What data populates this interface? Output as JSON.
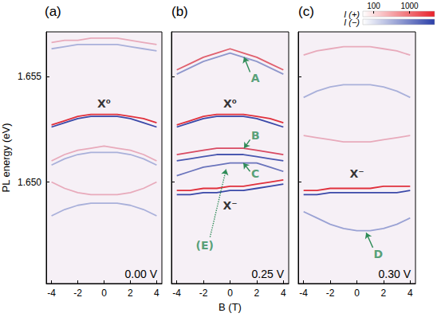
{
  "chart_data": [
    {
      "type": "line",
      "title": "(a)",
      "voltage": "0.00 V",
      "ylabel": "PL energy (eV)",
      "xlim": [
        -4.4,
        4.4
      ],
      "xticks": [
        -4,
        -2,
        0,
        2,
        4
      ],
      "ylim": [
        1.6452,
        1.6571
      ],
      "yticks": [
        {
          "value": 1.65,
          "label": "1.650"
        },
        {
          "value": 1.655,
          "label": "1.655"
        }
      ],
      "grid": false,
      "x": [
        -4,
        -3,
        -2,
        -1,
        0,
        1,
        2,
        3,
        4
      ],
      "series": [
        {
          "color": "#e0303c",
          "values": [
            1.6527,
            1.6529,
            1.6531,
            1.6532,
            1.6532,
            1.6532,
            1.6531,
            1.653,
            1.6528
          ]
        },
        {
          "color": "#3a48a8",
          "values": [
            1.6526,
            1.6528,
            1.653,
            1.6531,
            1.6531,
            1.6531,
            1.653,
            1.6528,
            1.6526
          ]
        },
        {
          "color": "#e8aabb",
          "values": [
            1.6566,
            1.6567,
            1.6567,
            1.6568,
            1.6568,
            1.6568,
            1.6567,
            1.6566,
            1.6565
          ]
        },
        {
          "color": "#a9b0da",
          "values": [
            1.6563,
            1.6564,
            1.6565,
            1.6565,
            1.6565,
            1.6565,
            1.6564,
            1.6563,
            1.6562
          ]
        },
        {
          "color": "#e8aabb",
          "values": [
            1.651,
            1.6513,
            1.6515,
            1.6516,
            1.6517,
            1.6516,
            1.6515,
            1.6513,
            1.651
          ]
        },
        {
          "color": "#a9b0da",
          "values": [
            1.6508,
            1.6511,
            1.6513,
            1.6514,
            1.6514,
            1.6514,
            1.6513,
            1.6511,
            1.6508
          ]
        },
        {
          "color": "#e8aabb",
          "values": [
            1.65,
            1.6497,
            1.6495,
            1.6494,
            1.6494,
            1.6494,
            1.6495,
            1.6497,
            1.65
          ]
        },
        {
          "color": "#a9b0da",
          "values": [
            1.6484,
            1.6487,
            1.6489,
            1.649,
            1.649,
            1.649,
            1.6489,
            1.6487,
            1.6484
          ]
        }
      ],
      "annotations": [
        {
          "text": "X⁰",
          "x": 0,
          "y": 1.6537,
          "color": "#000000"
        }
      ]
    },
    {
      "type": "line",
      "title": "(b)",
      "voltage": "0.25 V",
      "xlabel": "B (T)",
      "tick_labels": "x",
      "xlim": [
        -4.4,
        4.4
      ],
      "xticks": [
        -4,
        -2,
        0,
        2,
        4
      ],
      "ylim": [
        1.6452,
        1.6571
      ],
      "yticks": [
        {
          "value": 1.65,
          "label": "1.650"
        },
        {
          "value": 1.655,
          "label": "1.655"
        }
      ],
      "grid": false,
      "x": [
        -4,
        -3,
        -2,
        -1,
        0,
        1,
        2,
        3,
        4
      ],
      "series": [
        {
          "color": "#e0606e",
          "values": [
            1.6553,
            1.6556,
            1.6559,
            1.6561,
            1.6563,
            1.6561,
            1.6559,
            1.6556,
            1.6553
          ]
        },
        {
          "color": "#8f97cc",
          "values": [
            1.6551,
            1.6554,
            1.6557,
            1.6559,
            1.6561,
            1.6559,
            1.6557,
            1.6554,
            1.6551
          ]
        },
        {
          "color": "#e0303c",
          "values": [
            1.6527,
            1.6529,
            1.6531,
            1.6532,
            1.6532,
            1.6532,
            1.6531,
            1.653,
            1.6528
          ]
        },
        {
          "color": "#3a48a8",
          "values": [
            1.6526,
            1.6528,
            1.653,
            1.6531,
            1.6531,
            1.6531,
            1.653,
            1.6528,
            1.6526
          ]
        },
        {
          "color": "#d84a62",
          "values": [
            1.6513,
            1.6514,
            1.6515,
            1.6516,
            1.6516,
            1.6516,
            1.6515,
            1.6514,
            1.6513
          ]
        },
        {
          "color": "#4a58b0",
          "values": [
            1.651,
            1.6511,
            1.6512,
            1.6513,
            1.6513,
            1.6513,
            1.6512,
            1.6511,
            1.651
          ]
        },
        {
          "color": "#6a74bc",
          "values": [
            1.6503,
            1.6505,
            1.6507,
            1.6508,
            1.6509,
            1.6509,
            1.6509,
            1.6507,
            1.6505
          ]
        },
        {
          "color": "#e0303c",
          "values": [
            1.6496,
            1.6496,
            1.6497,
            1.6497,
            1.6498,
            1.6498,
            1.6499,
            1.65,
            1.6501
          ]
        },
        {
          "color": "#3a48a8",
          "values": [
            1.6494,
            1.6494,
            1.6495,
            1.6495,
            1.6496,
            1.6496,
            1.6497,
            1.6498,
            1.6499
          ]
        }
      ],
      "annotations": [
        {
          "text": "X⁰",
          "x": 0,
          "y": 1.6537,
          "color": "#000000"
        },
        {
          "text": "X⁻",
          "x": 0,
          "y": 1.6489,
          "color": "#000000"
        },
        {
          "text": "A",
          "x": 1.9,
          "y": 1.6549,
          "color": "#2e8b57",
          "arrow": [
            [
              1.5,
              1.6552
            ],
            [
              1.05,
              1.6559
            ]
          ]
        },
        {
          "text": "B",
          "x": 1.9,
          "y": 1.6522,
          "color": "#2e8b57",
          "arrow": [
            [
              1.5,
              1.652
            ],
            [
              1.05,
              1.6516
            ]
          ]
        },
        {
          "text": "C",
          "x": 1.9,
          "y": 1.6504,
          "color": "#2e8b57",
          "arrow": [
            [
              1.5,
              1.6505
            ],
            [
              1.0,
              1.6509
            ]
          ]
        },
        {
          "text": "(E)",
          "x": -1.9,
          "y": 1.647,
          "color": "#2e8b57",
          "line_style": "dotted",
          "arrow": [
            [
              -1.5,
              1.6474
            ],
            [
              -0.3,
              1.6506
            ]
          ]
        }
      ]
    },
    {
      "type": "line",
      "title": "(c)",
      "voltage": "0.30 V",
      "tick_labels": "x",
      "xlim": [
        -4.4,
        4.4
      ],
      "xticks": [
        -4,
        -2,
        0,
        2,
        4
      ],
      "ylim": [
        1.6452,
        1.6571
      ],
      "yticks": [
        {
          "value": 1.65,
          "label": "1.650"
        },
        {
          "value": 1.655,
          "label": "1.655"
        }
      ],
      "grid": false,
      "x": [
        -4,
        -3,
        -2,
        -1,
        0,
        1,
        2,
        3,
        4
      ],
      "series": [
        {
          "color": "#e0303c",
          "values": [
            1.6496,
            1.6496,
            1.6497,
            1.6497,
            1.6497,
            1.6497,
            1.6498,
            1.6498,
            1.6498
          ]
        },
        {
          "color": "#3a48a8",
          "values": [
            1.6494,
            1.6494,
            1.6495,
            1.6495,
            1.6495,
            1.6495,
            1.6495,
            1.6495,
            1.6496
          ]
        },
        {
          "color": "#e8aabb",
          "values": [
            1.656,
            1.6562,
            1.6563,
            1.6564,
            1.6564,
            1.6564,
            1.6563,
            1.6562,
            1.656
          ]
        },
        {
          "color": "#a9b0da",
          "values": [
            1.654,
            1.6543,
            1.6545,
            1.6546,
            1.6546,
            1.6546,
            1.6545,
            1.6543,
            1.654
          ]
        },
        {
          "color": "#e8aabb",
          "values": [
            1.6522,
            1.6521,
            1.652,
            1.6519,
            1.6519,
            1.6519,
            1.652,
            1.6521,
            1.6522
          ]
        },
        {
          "color": "#9aa2d4",
          "values": [
            1.6486,
            1.6483,
            1.648,
            1.6478,
            1.6477,
            1.6477,
            1.6478,
            1.648,
            1.6483
          ]
        }
      ],
      "annotations": [
        {
          "text": "X⁻",
          "x": 0,
          "y": 1.6504,
          "color": "#000000"
        },
        {
          "text": "D",
          "x": 1.6,
          "y": 1.6466,
          "color": "#2e8b57",
          "arrow": [
            [
              1.2,
              1.6469
            ],
            [
              0.7,
              1.6476
            ]
          ]
        }
      ],
      "colorbar": {
        "range": [
          50,
          5000
        ],
        "ticks": [
          100,
          1000
        ],
        "labels": [
          "I (+)",
          "I (−)"
        ],
        "colors": [
          "#e8212a",
          "#2b3fa8"
        ]
      }
    }
  ]
}
